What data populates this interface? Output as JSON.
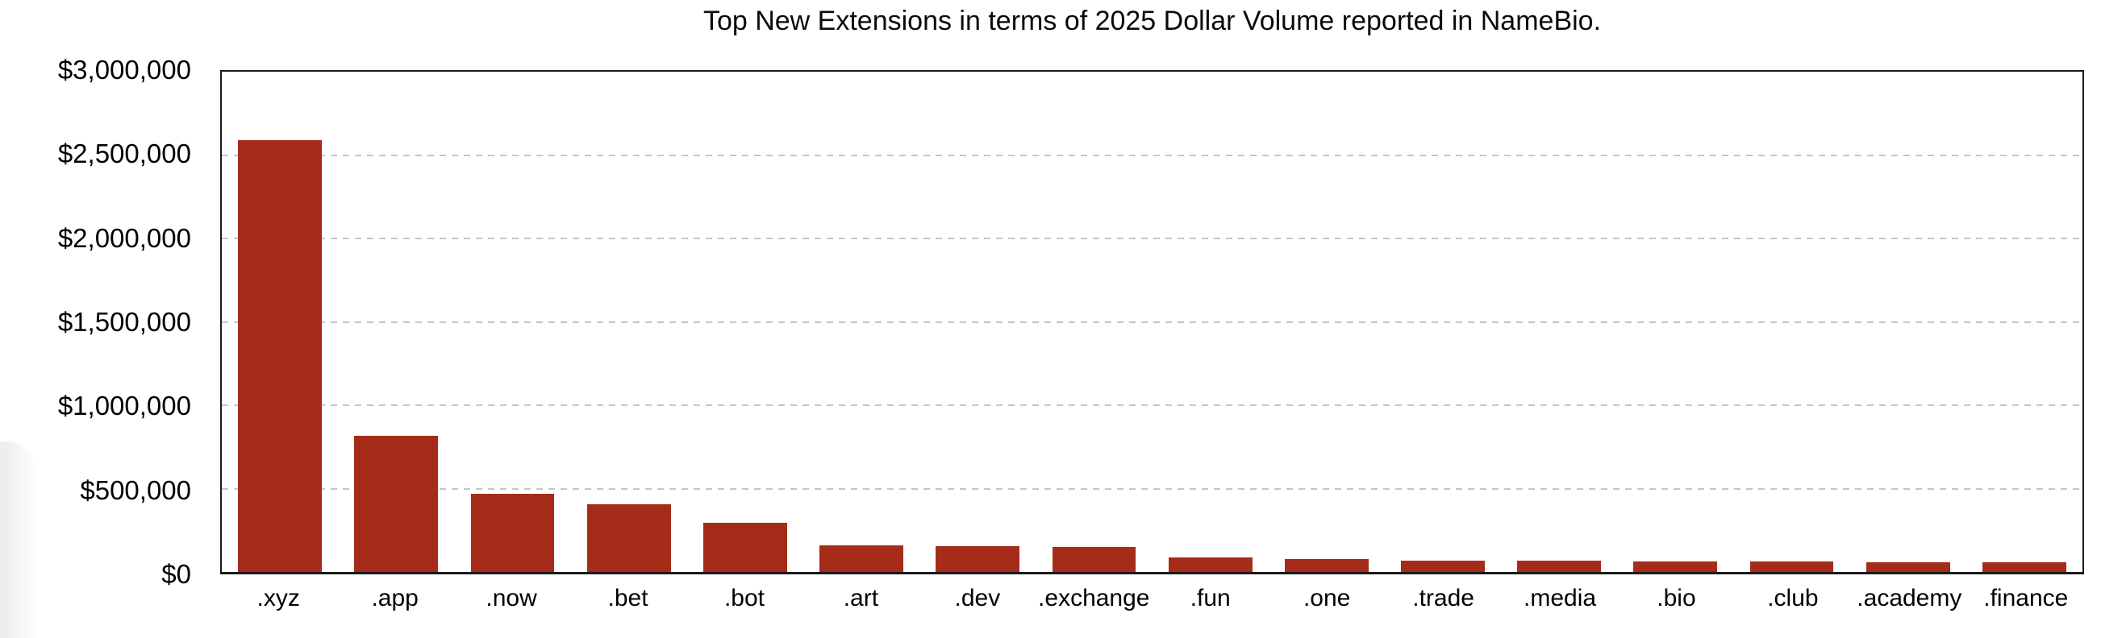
{
  "colors": {
    "bar": "#a62c1a",
    "grid": "#c6c6c6",
    "axis": "#1a1a1a",
    "text": "#000000",
    "background": "#ffffff"
  },
  "chart_data": {
    "type": "bar",
    "title": "Top New Extensions in terms of 2025 Dollar Volume reported in NameBio.",
    "categories": [
      ".xyz",
      ".app",
      ".now",
      ".bet",
      ".bot",
      ".art",
      ".dev",
      ".exchange",
      ".fun",
      ".one",
      ".trade",
      ".media",
      ".bio",
      ".club",
      ".academy",
      ".finance"
    ],
    "values": [
      2590000,
      815000,
      470000,
      405000,
      295000,
      160000,
      155000,
      148000,
      85000,
      77000,
      70000,
      68000,
      65000,
      62000,
      60000,
      58000
    ],
    "xlabel": "",
    "ylabel": "",
    "ylim": [
      0,
      3000000
    ],
    "y_ticks": [
      0,
      500000,
      1000000,
      1500000,
      2000000,
      2500000,
      3000000
    ],
    "y_tick_labels": [
      "$0",
      "$500,000",
      "$1,000,000",
      "$1,500,000",
      "$2,000,000",
      "$2,500,000",
      "$3,000,000"
    ],
    "grid": "horizontal, dashed",
    "legend": "none",
    "bar_color": "#a62c1a"
  }
}
